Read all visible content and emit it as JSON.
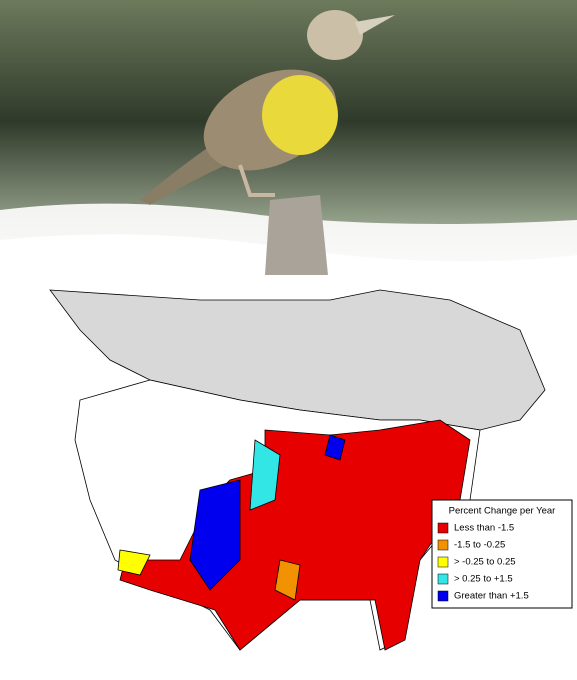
{
  "legend": {
    "title": "Percent Change per Year",
    "items": [
      {
        "label": "Less than -1.5",
        "color": "#e60000"
      },
      {
        "label": "-1.5 to -0.25",
        "color": "#f39200"
      },
      {
        "label": "> -0.25 to 0.25",
        "color": "#ffff00"
      },
      {
        "label": "> 0.25 to +1.5",
        "color": "#33e6e6"
      },
      {
        "label": "Greater than +1.5",
        "color": "#0000ee"
      }
    ]
  }
}
